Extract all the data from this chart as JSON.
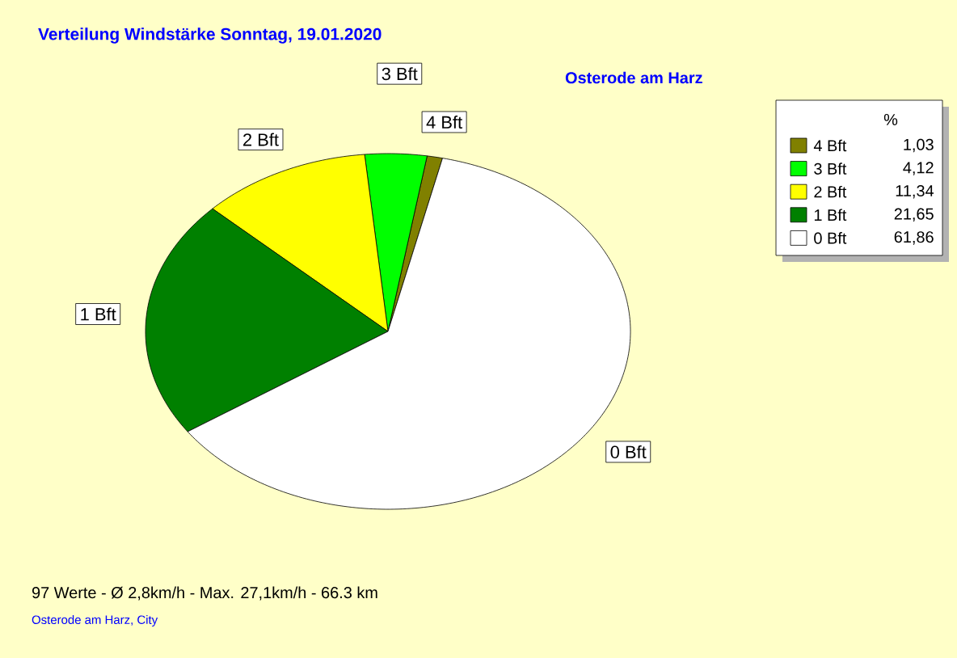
{
  "chart_data": {
    "type": "pie",
    "title": "Verteilung Windstärke  Sonntag, 19.01.2020",
    "subtitle": "Osterode am Harz",
    "legend_title": "%",
    "categories": [
      "4 Bft",
      "3 Bft",
      "2 Bft",
      "1 Bft",
      "0 Bft"
    ],
    "values": [
      1.03,
      4.12,
      11.34,
      21.65,
      61.86
    ],
    "value_labels": [
      "1,03",
      "4,12",
      "11,34",
      "21,65",
      "61,86"
    ],
    "colors": [
      "#808000",
      "#00ff00",
      "#ffff00",
      "#008000",
      "#ffffff"
    ],
    "legend": "top right",
    "annotations": [
      "97 Werte   -   Ø 2,8km/h  -  Max. 27,1km/h   -   66.3 km",
      "Osterode am Harz, City"
    ]
  }
}
